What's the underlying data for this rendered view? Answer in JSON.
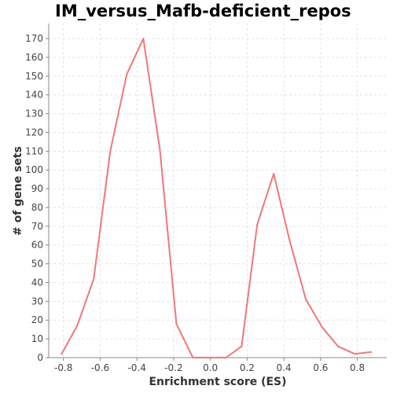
{
  "chart_data": {
    "type": "line",
    "title": "IM_versus_Mafb-deficient_repos",
    "xlabel": "Enrichment score (ES)",
    "ylabel": "# of gene sets",
    "xlim": [
      -0.88,
      0.96
    ],
    "ylim": [
      0,
      178
    ],
    "grid": true,
    "x_ticks": [
      -0.8,
      -0.6,
      -0.4,
      -0.2,
      0.0,
      0.2,
      0.4,
      0.6,
      0.8
    ],
    "x_tick_labels": [
      "-0.8",
      "-0.6",
      "-0.4",
      "-0.2",
      "0.0",
      "0.2",
      "0.4",
      "0.6",
      "0.8"
    ],
    "y_ticks": [
      0,
      10,
      20,
      30,
      40,
      50,
      60,
      70,
      80,
      90,
      100,
      110,
      120,
      130,
      140,
      150,
      160,
      170
    ],
    "y_tick_labels": [
      "0",
      "10",
      "20",
      "30",
      "40",
      "50",
      "60",
      "70",
      "80",
      "90",
      "100",
      "110",
      "120",
      "130",
      "140",
      "150",
      "160",
      "170"
    ],
    "series": [
      {
        "name": "IM_versus_Mafb-deficient_repos",
        "color": "#f07878",
        "x": [
          -0.81,
          -0.725,
          -0.635,
          -0.545,
          -0.455,
          -0.365,
          -0.275,
          -0.185,
          -0.095,
          -0.005,
          0.085,
          0.17,
          0.255,
          0.345,
          0.43,
          0.52,
          0.61,
          0.695,
          0.785,
          0.875
        ],
        "y": [
          2,
          17,
          42,
          110,
          151,
          170,
          111,
          18,
          0,
          0,
          0,
          6,
          71,
          98,
          63,
          31,
          16,
          6,
          2,
          3
        ]
      }
    ]
  }
}
